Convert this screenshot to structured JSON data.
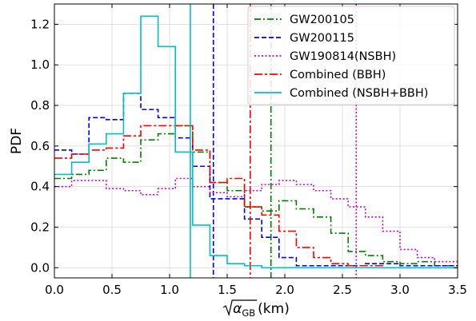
{
  "chart_data": {
    "type": "line",
    "step": true,
    "title": "",
    "xlabel": "√αGB (km)",
    "xlabel_parts": {
      "radicand": "α",
      "subscript": "GB",
      "unit": " (km)"
    },
    "ylabel": "PDF",
    "xlim": [
      0.0,
      3.5
    ],
    "ylim": [
      -0.05,
      1.3
    ],
    "xticks": [
      0.0,
      0.5,
      1.0,
      1.5,
      2.0,
      2.5,
      3.0,
      3.5
    ],
    "xtick_labels": [
      "0.0",
      "0.5",
      "1.0",
      "1.5",
      "2.0",
      "2.5",
      "3.0",
      "3.5"
    ],
    "yticks": [
      0.0,
      0.2,
      0.4,
      0.6,
      0.8,
      1.0,
      1.2
    ],
    "ytick_labels": [
      "0.0",
      "0.2",
      "0.4",
      "0.6",
      "0.8",
      "1.0",
      "1.2"
    ],
    "grid": true,
    "legend_position": "top-right",
    "series": [
      {
        "name": "GW200105",
        "color": "#008000",
        "dash": "dashdot",
        "bin_width": 0.15,
        "values": [
          0.44,
          0.46,
          0.48,
          0.54,
          0.52,
          0.63,
          0.66,
          0.7,
          0.57,
          0.42,
          0.38,
          0.3,
          0.28,
          0.33,
          0.29,
          0.25,
          0.17,
          0.08,
          0.06,
          0.03,
          0.02,
          0.03,
          0.01,
          0.01
        ],
        "marker_x": 1.88
      },
      {
        "name": "GW200115",
        "color": "#0000e0",
        "dash": "dashed",
        "bin_width": 0.15,
        "values": [
          0.58,
          0.56,
          0.74,
          0.73,
          0.86,
          0.78,
          0.74,
          0.64,
          0.5,
          0.34,
          0.34,
          0.24,
          0.15,
          0.05,
          0.01,
          0.01,
          0.01,
          0.01,
          0.02,
          0.02,
          0.01,
          0.01,
          0.01,
          0.01
        ],
        "marker_x": 1.38
      },
      {
        "name": "GW190814(NSBH)",
        "color": "#cc00cc",
        "dash": "dotted",
        "bin_width": 0.15,
        "values": [
          0.4,
          0.43,
          0.43,
          0.39,
          0.38,
          0.36,
          0.39,
          0.44,
          0.4,
          0.37,
          0.35,
          0.38,
          0.41,
          0.43,
          0.41,
          0.38,
          0.34,
          0.3,
          0.25,
          0.18,
          0.09,
          0.05,
          0.03,
          0.03
        ],
        "marker_x": 2.62
      },
      {
        "name": "Combined (BBH)",
        "color": "#ff0000",
        "dash": "longdashdot",
        "bin_width": 0.15,
        "values": [
          0.54,
          0.56,
          0.58,
          0.59,
          0.65,
          0.7,
          0.7,
          0.7,
          0.58,
          0.42,
          0.44,
          0.3,
          0.26,
          0.18,
          0.1,
          0.05,
          0.02,
          0.01,
          0.01,
          0.0,
          0.0,
          0.0,
          0.0,
          0.0
        ],
        "marker_x": 1.7
      },
      {
        "name": "Combined (NSBH+BBH)",
        "color": "#00c0c0",
        "dash": "solid",
        "bin_width": 0.15,
        "values": [
          0.46,
          0.52,
          0.61,
          0.66,
          0.86,
          1.24,
          1.09,
          0.57,
          0.21,
          0.06,
          0.02,
          0.01,
          0.0,
          0.0,
          0.0,
          0.0,
          0.0,
          0.0,
          0.0,
          0.0,
          0.0,
          0.0,
          0.0,
          0.0
        ],
        "marker_x": 1.18
      }
    ]
  }
}
